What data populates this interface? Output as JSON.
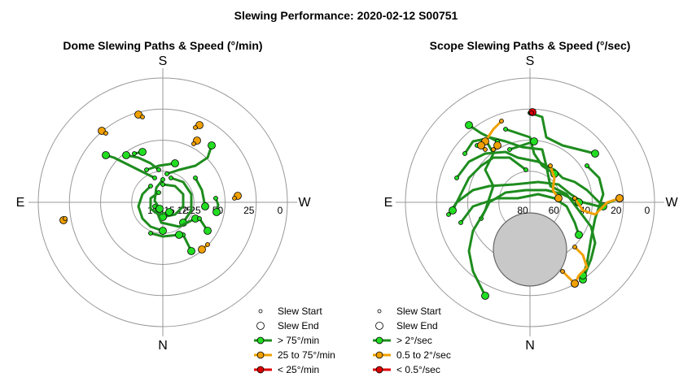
{
  "figure": {
    "title": "Slewing Performance: 2020-02-12 S00751"
  },
  "colors": {
    "fast": "#1e8c1e",
    "fast_marker": "#22dd22",
    "medium": "#f0a000",
    "slow": "#dd0000",
    "ring": "#999999",
    "excluded": "#c8c8c8"
  },
  "chart_data": [
    {
      "type": "scatter",
      "subtype": "polar",
      "title": "Dome Slewing Paths & Speed (°/min)",
      "cardinals": {
        "top": "S",
        "bottom": "N",
        "left": "E",
        "right": "W"
      },
      "radial_ticks": [
        "100",
        "75",
        "50",
        "25",
        "0"
      ],
      "rings": [
        100,
        75,
        50,
        25,
        0
      ],
      "center_ticks": [
        "15",
        "12",
        "25"
      ],
      "legend": [
        {
          "kind": "start",
          "label": "Slew Start"
        },
        {
          "kind": "end",
          "label": "Slew End"
        },
        {
          "kind": "fast",
          "label": "> 75°/min"
        },
        {
          "kind": "medium",
          "label": "25 to 75°/min"
        },
        {
          "kind": "slow",
          "label": "< 25°/min"
        }
      ],
      "paths": [
        {
          "speed": "fast",
          "points": [
            [
              -10,
              -30
            ],
            [
              -20,
              -35
            ],
            [
              -40,
              -45
            ],
            [
              -60,
              -55
            ],
            [
              -70,
              -58
            ]
          ]
        },
        {
          "speed": "fast",
          "points": [
            [
              -5,
              -40
            ],
            [
              -15,
              -48
            ],
            [
              -30,
              -55
            ],
            [
              -45,
              -58
            ]
          ]
        },
        {
          "speed": "fast",
          "points": [
            [
              5,
              -35
            ],
            [
              20,
              -40
            ],
            [
              40,
              -45
            ],
            [
              55,
              -55
            ],
            [
              60,
              -70
            ]
          ]
        },
        {
          "speed": "fast",
          "points": [
            [
              -15,
              -20
            ],
            [
              -25,
              -10
            ],
            [
              -30,
              5
            ],
            [
              -25,
              20
            ],
            [
              -15,
              30
            ],
            [
              0,
              35
            ]
          ]
        },
        {
          "speed": "fast",
          "points": [
            [
              0,
              -22
            ],
            [
              15,
              -20
            ],
            [
              25,
              -10
            ],
            [
              25,
              5
            ],
            [
              15,
              15
            ],
            [
              0,
              18
            ]
          ]
        },
        {
          "speed": "fast",
          "points": [
            [
              -5,
              -12
            ],
            [
              -15,
              -5
            ],
            [
              -15,
              8
            ],
            [
              -5,
              15
            ],
            [
              8,
              12
            ]
          ]
        },
        {
          "speed": "fast",
          "points": [
            [
              10,
              -30
            ],
            [
              25,
              -25
            ],
            [
              35,
              -10
            ],
            [
              35,
              10
            ],
            [
              25,
              25
            ]
          ]
        },
        {
          "speed": "fast",
          "points": [
            [
              -20,
              -40
            ],
            [
              -5,
              -45
            ],
            [
              15,
              -48
            ]
          ]
        },
        {
          "speed": "fast",
          "points": [
            [
              40,
              -30
            ],
            [
              48,
              -15
            ],
            [
              52,
              5
            ]
          ]
        },
        {
          "speed": "fast",
          "points": [
            [
              -10,
              5
            ],
            [
              -2,
              25
            ],
            [
              20,
              30
            ],
            [
              40,
              20
            ]
          ]
        },
        {
          "speed": "fast",
          "points": [
            [
              45,
              20
            ],
            [
              55,
              35
            ]
          ]
        },
        {
          "speed": "fast",
          "points": [
            [
              25,
              40
            ],
            [
              35,
              60
            ]
          ]
        },
        {
          "speed": "fast",
          "points": [
            [
              0,
              -28
            ],
            [
              -8,
              -18
            ],
            [
              -10,
              -2
            ],
            [
              -4,
              8
            ]
          ]
        },
        {
          "speed": "fast",
          "points": [
            [
              65,
              -5
            ],
            [
              68,
              3
            ],
            [
              66,
              12
            ]
          ]
        },
        {
          "speed": "fast",
          "points": [
            [
              -15,
              38
            ],
            [
              0,
              42
            ],
            [
              20,
              40
            ]
          ]
        },
        {
          "speed": "fast",
          "points": [
            [
              -35,
              -60
            ],
            [
              -25,
              -62
            ]
          ]
        },
        {
          "speed": "medium",
          "points": [
            [
              38,
              -72
            ],
            [
              42,
              -76
            ]
          ]
        },
        {
          "speed": "medium",
          "points": [
            [
              -25,
              -105
            ],
            [
              -30,
              -108
            ]
          ]
        },
        {
          "speed": "medium",
          "points": [
            [
              -70,
              -85
            ],
            [
              -75,
              -88
            ]
          ]
        },
        {
          "speed": "medium",
          "points": [
            [
              40,
              -92
            ],
            [
              45,
              -95
            ]
          ]
        },
        {
          "speed": "medium",
          "points": [
            [
              55,
              52
            ],
            [
              48,
              58
            ]
          ]
        },
        {
          "speed": "medium",
          "points": [
            [
              88,
              -5
            ],
            [
              92,
              -8
            ]
          ]
        },
        {
          "speed": "medium",
          "points": [
            [
              -120,
              20
            ],
            [
              -122,
              22
            ]
          ]
        }
      ]
    },
    {
      "type": "scatter",
      "subtype": "polar",
      "title": "Scope Slewing Paths & Speed (°/sec)",
      "cardinals": {
        "top": "S",
        "bottom": "N",
        "left": "E",
        "right": "W"
      },
      "radial_ticks": [
        "80",
        "60",
        "40",
        "20",
        "0"
      ],
      "rings": [
        80,
        60,
        40,
        20,
        0
      ],
      "legend": [
        {
          "kind": "start",
          "label": "Slew Start"
        },
        {
          "kind": "end",
          "label": "Slew End"
        },
        {
          "kind": "fast",
          "label": "> 2°/sec"
        },
        {
          "kind": "medium",
          "label": "0.5 to 2°/sec"
        },
        {
          "kind": "slow",
          "label": "< 0.5°/sec"
        }
      ],
      "paths": [
        {
          "speed": "fast",
          "points": [
            [
              0,
              -110
            ],
            [
              15,
              -105
            ],
            [
              20,
              -80
            ],
            [
              40,
              -70
            ],
            [
              60,
              -65
            ],
            [
              80,
              -60
            ]
          ]
        },
        {
          "speed": "fast",
          "points": [
            [
              -65,
              -70
            ],
            [
              -50,
              -80
            ],
            [
              -30,
              -75
            ],
            [
              -10,
              -68
            ],
            [
              15,
              -65
            ],
            [
              20,
              -45
            ],
            [
              25,
              -20
            ],
            [
              45,
              -10
            ],
            [
              60,
              10
            ],
            [
              75,
              30
            ],
            [
              80,
              50
            ],
            [
              75,
              70
            ],
            [
              65,
              95
            ]
          ]
        },
        {
          "speed": "fast",
          "points": [
            [
              -90,
              -30
            ],
            [
              -75,
              -50
            ],
            [
              -55,
              -60
            ],
            [
              -30,
              -62
            ],
            [
              -15,
              -55
            ],
            [
              10,
              -50
            ],
            [
              30,
              -40
            ],
            [
              40,
              -30
            ],
            [
              55,
              -25
            ],
            [
              70,
              -15
            ],
            [
              90,
              5
            ]
          ]
        },
        {
          "speed": "fast",
          "points": [
            [
              -100,
              15
            ],
            [
              -90,
              0
            ],
            [
              -70,
              -15
            ],
            [
              -50,
              -20
            ],
            [
              -20,
              -22
            ],
            [
              10,
              -25
            ],
            [
              35,
              -22
            ],
            [
              50,
              -10
            ],
            [
              65,
              0
            ],
            [
              85,
              5
            ],
            [
              110,
              -5
            ]
          ]
        },
        {
          "speed": "fast",
          "points": [
            [
              -85,
              25
            ],
            [
              -70,
              5
            ],
            [
              -40,
              -5
            ],
            [
              -15,
              -5
            ],
            [
              10,
              -10
            ],
            [
              30,
              -5
            ],
            [
              45,
              5
            ],
            [
              55,
              25
            ],
            [
              60,
              40
            ]
          ]
        },
        {
          "speed": "fast",
          "points": [
            [
              -60,
              20
            ],
            [
              -50,
              0
            ],
            [
              -30,
              -12
            ],
            [
              -5,
              -15
            ],
            [
              20,
              -15
            ],
            [
              40,
              -10
            ],
            [
              60,
              0
            ]
          ]
        },
        {
          "speed": "fast",
          "points": [
            [
              -80,
              -60
            ],
            [
              -70,
              -75
            ],
            [
              -55,
              -78
            ],
            [
              -45,
              -60
            ],
            [
              -55,
              -40
            ],
            [
              -45,
              -20
            ],
            [
              -55,
              10
            ],
            [
              -70,
              35
            ],
            [
              -75,
              60
            ],
            [
              -70,
              85
            ],
            [
              -55,
              115
            ]
          ]
        },
        {
          "speed": "fast",
          "points": [
            [
              -30,
              -90
            ],
            [
              -15,
              -85
            ],
            [
              0,
              -80
            ],
            [
              5,
              -60
            ],
            [
              15,
              -45
            ],
            [
              30,
              -35
            ]
          ]
        },
        {
          "speed": "fast",
          "points": [
            [
              -5,
              -40
            ],
            [
              -25,
              -55
            ],
            [
              -45,
              -55
            ],
            [
              -60,
              -45
            ],
            [
              -75,
              -30
            ],
            [
              -85,
              -10
            ],
            [
              -95,
              10
            ]
          ]
        },
        {
          "speed": "fast",
          "points": [
            [
              -40,
              -75
            ],
            [
              -60,
              -85
            ],
            [
              -75,
              -95
            ]
          ]
        },
        {
          "speed": "fast",
          "points": [
            [
              -25,
              -65
            ],
            [
              -10,
              -70
            ],
            [
              5,
              -75
            ]
          ]
        },
        {
          "speed": "fast",
          "points": [
            [
              70,
              -45
            ],
            [
              85,
              -30
            ],
            [
              90,
              -10
            ],
            [
              80,
              20
            ],
            [
              75,
              45
            ],
            [
              70,
              75
            ],
            [
              65,
              90
            ]
          ]
        },
        {
          "speed": "medium",
          "points": [
            [
              -35,
              -100
            ],
            [
              -45,
              -90
            ],
            [
              -55,
              -75
            ]
          ]
        },
        {
          "speed": "medium",
          "points": [
            [
              25,
              -45
            ],
            [
              30,
              -30
            ],
            [
              28,
              -15
            ],
            [
              35,
              -5
            ]
          ]
        },
        {
          "speed": "medium",
          "points": [
            [
              55,
              -5
            ],
            [
              65,
              10
            ],
            [
              80,
              15
            ],
            [
              95,
              0
            ],
            [
              110,
              -5
            ]
          ]
        },
        {
          "speed": "medium",
          "points": [
            [
              55,
              55
            ],
            [
              65,
              65
            ],
            [
              70,
              80
            ],
            [
              60,
              90
            ],
            [
              55,
              100
            ]
          ]
        },
        {
          "speed": "medium",
          "points": [
            [
              40,
              85
            ],
            [
              50,
              95
            ],
            [
              55,
              100
            ]
          ]
        },
        {
          "speed": "medium",
          "points": [
            [
              -45,
              -65
            ],
            [
              -40,
              -70
            ]
          ]
        },
        {
          "speed": "medium",
          "points": [
            [
              -55,
              -65
            ],
            [
              -60,
              -70
            ]
          ]
        },
        {
          "speed": "slow",
          "points": [
            [
              2,
              -110
            ],
            [
              3,
              -111
            ]
          ]
        }
      ],
      "excluded_zone": {
        "x": 0,
        "y": 58,
        "r": 45
      }
    }
  ]
}
